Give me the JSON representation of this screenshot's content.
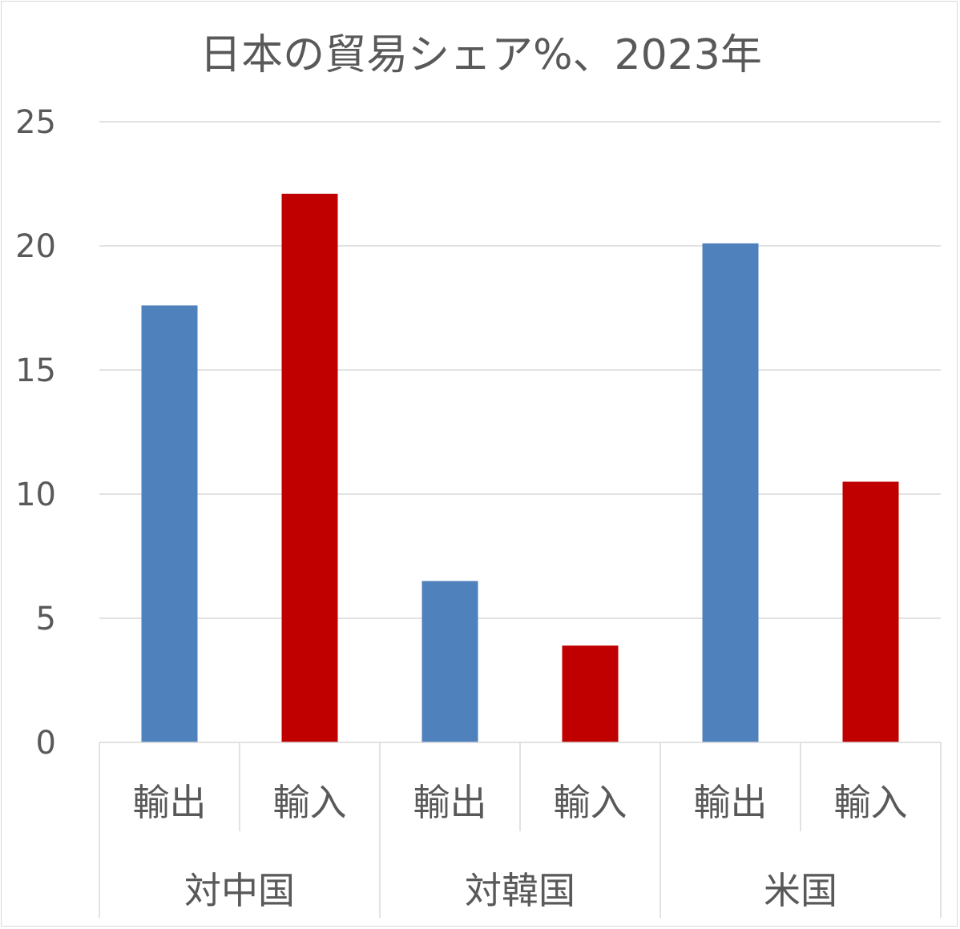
{
  "chart_data": {
    "type": "bar",
    "title": "日本の貿易シェア%、2023年",
    "groups": [
      {
        "label": "対中国",
        "categories": [
          "輸出",
          "輸入"
        ],
        "values": [
          17.6,
          22.1
        ]
      },
      {
        "label": "対韓国",
        "categories": [
          "輸出",
          "輸入"
        ],
        "values": [
          6.5,
          3.9
        ]
      },
      {
        "label": "米国",
        "categories": [
          "輸出",
          "輸入"
        ],
        "values": [
          20.1,
          10.5
        ]
      }
    ],
    "bar_colors": {
      "輸出": "#4f81bd",
      "輸入": "#c00000"
    },
    "ylim": [
      0,
      25
    ],
    "yticks": [
      "0",
      "5",
      "10",
      "15",
      "20",
      "25"
    ],
    "grid": true,
    "legend": "none",
    "xlabel": "",
    "ylabel": ""
  }
}
